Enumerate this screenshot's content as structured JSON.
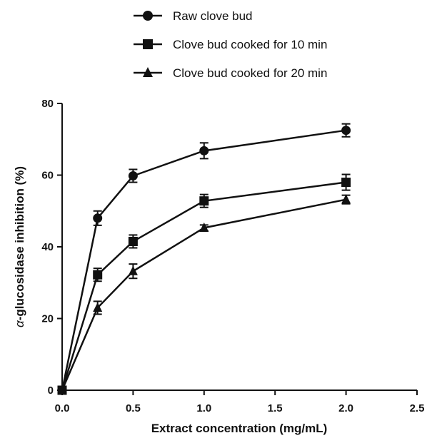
{
  "chart_data": {
    "type": "line",
    "title": "",
    "xlabel": "Extract concentration (mg/mL)",
    "ylabel_prefix": "α",
    "ylabel": "-glucosidase inhibition (%)",
    "xlim": [
      0,
      2.5
    ],
    "ylim": [
      0,
      80
    ],
    "xticks": [
      "0.0",
      "0.5",
      "1.0",
      "1.5",
      "2.0",
      "2.5"
    ],
    "xtick_values": [
      0,
      0.5,
      1.0,
      1.5,
      2.0,
      2.5
    ],
    "yticks": [
      "0",
      "20",
      "40",
      "60",
      "80"
    ],
    "ytick_values": [
      0,
      20,
      40,
      60,
      80
    ],
    "grid": false,
    "legend_position": "top",
    "x": [
      0,
      0.25,
      0.5,
      1.0,
      2.0
    ],
    "series": [
      {
        "name": "Raw clove bud",
        "marker": "circle",
        "values": [
          0,
          48.0,
          59.8,
          66.8,
          72.5
        ],
        "errors": [
          0,
          2.0,
          1.8,
          2.2,
          1.8
        ]
      },
      {
        "name": "Clove bud cooked for 10 min",
        "marker": "square",
        "values": [
          0,
          32.2,
          41.5,
          52.8,
          58.0
        ],
        "errors": [
          0,
          1.8,
          1.8,
          1.8,
          2.2
        ]
      },
      {
        "name": "Clove bud cooked for 20 min",
        "marker": "triangle",
        "values": [
          0,
          23.0,
          33.2,
          45.3,
          53.2
        ],
        "errors": [
          0,
          1.8,
          2.0,
          0.8,
          1.2
        ]
      }
    ]
  }
}
